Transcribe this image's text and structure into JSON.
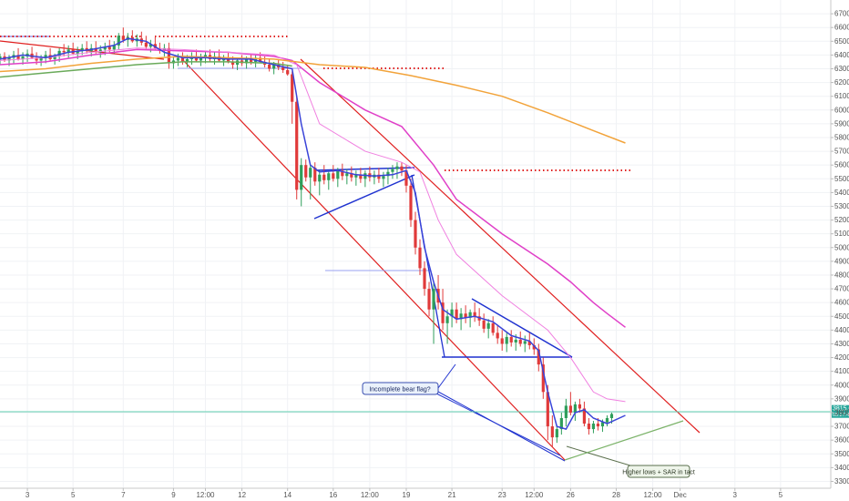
{
  "chart_data": {
    "type": "candlestick",
    "y_axis": {
      "position": "right",
      "ylim": [
        3250,
        6800
      ],
      "ticks": [
        3300,
        3400,
        3500,
        3600,
        3700,
        3800,
        3900,
        4000,
        4100,
        4200,
        4300,
        4400,
        4500,
        4600,
        4700,
        4800,
        4900,
        5000,
        5100,
        5200,
        5300,
        5400,
        5500,
        5600,
        5700,
        5800,
        5900,
        6000,
        6100,
        6200,
        6300,
        6400,
        6500,
        6600,
        6700
      ],
      "tick_labels": [
        "3300.0",
        "3400.0",
        "3500.0",
        "3600.0",
        "3700.0",
        "3800.0",
        "3900.0",
        "4000.0",
        "4100.0",
        "4200.0",
        "4300.0",
        "4400.0",
        "4500.0",
        "4600.0",
        "4700.0",
        "4800.0",
        "4900.0",
        "5000.0",
        "5100.0",
        "5200.0",
        "5300.0",
        "5400.0",
        "5500.0",
        "5600.0",
        "5700.0",
        "5800.0",
        "5900.0",
        "6000.0",
        "6100.0",
        "6200.0",
        "6300.0",
        "6400.0",
        "6500.0",
        "6600.0",
        "6700.0"
      ]
    },
    "x_axis": {
      "xlim": [
        0,
        182
      ],
      "ticks": [
        {
          "i": 6,
          "label": "3"
        },
        {
          "i": 16,
          "label": "5"
        },
        {
          "i": 27,
          "label": "7"
        },
        {
          "i": 38,
          "label": "9"
        },
        {
          "i": 45,
          "label": "12:00"
        },
        {
          "i": 53,
          "label": "12"
        },
        {
          "i": 63,
          "label": "14"
        },
        {
          "i": 73,
          "label": "16"
        },
        {
          "i": 81,
          "label": "12:00"
        },
        {
          "i": 89,
          "label": "19"
        },
        {
          "i": 99,
          "label": "21"
        },
        {
          "i": 110,
          "label": "23"
        },
        {
          "i": 117,
          "label": "12:00"
        },
        {
          "i": 125,
          "label": "26"
        },
        {
          "i": 135,
          "label": "28"
        },
        {
          "i": 143,
          "label": "12:00"
        },
        {
          "i": 149,
          "label": "Dec"
        },
        {
          "i": 161,
          "label": "3"
        },
        {
          "i": 171,
          "label": "5"
        }
      ]
    },
    "candles": [
      [
        6370,
        6410,
        6330,
        6390
      ],
      [
        6390,
        6420,
        6350,
        6360
      ],
      [
        6360,
        6400,
        6320,
        6380
      ],
      [
        6380,
        6430,
        6340,
        6400
      ],
      [
        6400,
        6450,
        6360,
        6370
      ],
      [
        6370,
        6420,
        6330,
        6390
      ],
      [
        6390,
        6440,
        6350,
        6410
      ],
      [
        6410,
        6460,
        6370,
        6380
      ],
      [
        6380,
        6420,
        6330,
        6360
      ],
      [
        6360,
        6400,
        6320,
        6380
      ],
      [
        6380,
        6430,
        6340,
        6400
      ],
      [
        6400,
        6450,
        6360,
        6370
      ],
      [
        6370,
        6410,
        6330,
        6390
      ],
      [
        6390,
        6450,
        6350,
        6430
      ],
      [
        6430,
        6480,
        6390,
        6420
      ],
      [
        6420,
        6470,
        6380,
        6440
      ],
      [
        6440,
        6490,
        6400,
        6410
      ],
      [
        6410,
        6460,
        6370,
        6430
      ],
      [
        6430,
        6480,
        6400,
        6450
      ],
      [
        6450,
        6500,
        6410,
        6430
      ],
      [
        6430,
        6480,
        6390,
        6450
      ],
      [
        6450,
        6500,
        6410,
        6420
      ],
      [
        6420,
        6470,
        6380,
        6440
      ],
      [
        6440,
        6490,
        6400,
        6460
      ],
      [
        6460,
        6510,
        6420,
        6440
      ],
      [
        6440,
        6500,
        6410,
        6470
      ],
      [
        6470,
        6560,
        6440,
        6540
      ],
      [
        6540,
        6600,
        6490,
        6510
      ],
      [
        6510,
        6560,
        6460,
        6530
      ],
      [
        6530,
        6580,
        6490,
        6500
      ],
      [
        6500,
        6550,
        6460,
        6520
      ],
      [
        6520,
        6570,
        6470,
        6490
      ],
      [
        6490,
        6540,
        6440,
        6460
      ],
      [
        6460,
        6510,
        6420,
        6480
      ],
      [
        6480,
        6530,
        6440,
        6450
      ],
      [
        6450,
        6490,
        6410,
        6430
      ],
      [
        6430,
        6480,
        6390,
        6450
      ],
      [
        6450,
        6490,
        6300,
        6340
      ],
      [
        6340,
        6390,
        6300,
        6360
      ],
      [
        6360,
        6410,
        6320,
        6380
      ],
      [
        6380,
        6420,
        6330,
        6350
      ],
      [
        6350,
        6400,
        6310,
        6370
      ],
      [
        6370,
        6420,
        6330,
        6390
      ],
      [
        6390,
        6440,
        6350,
        6360
      ],
      [
        6360,
        6410,
        6320,
        6380
      ],
      [
        6380,
        6430,
        6340,
        6400
      ],
      [
        6400,
        6440,
        6350,
        6370
      ],
      [
        6370,
        6420,
        6330,
        6390
      ],
      [
        6390,
        6440,
        6350,
        6360
      ],
      [
        6360,
        6400,
        6320,
        6380
      ],
      [
        6380,
        6420,
        6340,
        6350
      ],
      [
        6350,
        6390,
        6300,
        6330
      ],
      [
        6330,
        6380,
        6290,
        6360
      ],
      [
        6360,
        6400,
        6320,
        6340
      ],
      [
        6340,
        6390,
        6300,
        6370
      ],
      [
        6370,
        6410,
        6330,
        6350
      ],
      [
        6350,
        6400,
        6310,
        6380
      ],
      [
        6380,
        6420,
        6340,
        6350
      ],
      [
        6350,
        6390,
        6310,
        6330
      ],
      [
        6330,
        6370,
        6280,
        6300
      ],
      [
        6300,
        6350,
        6260,
        6330
      ],
      [
        6330,
        6370,
        6290,
        6310
      ],
      [
        6310,
        6350,
        6270,
        6290
      ],
      [
        6290,
        6330,
        6250,
        6260
      ],
      [
        6260,
        6280,
        5900,
        6060
      ],
      [
        6060,
        6100,
        5350,
        5420
      ],
      [
        5420,
        5650,
        5300,
        5600
      ],
      [
        5600,
        5640,
        5480,
        5510
      ],
      [
        5510,
        5600,
        5350,
        5580
      ],
      [
        5580,
        5620,
        5450,
        5480
      ],
      [
        5480,
        5560,
        5380,
        5530
      ],
      [
        5530,
        5600,
        5460,
        5490
      ],
      [
        5490,
        5560,
        5420,
        5540
      ],
      [
        5540,
        5600,
        5480,
        5500
      ],
      [
        5500,
        5580,
        5440,
        5560
      ],
      [
        5560,
        5610,
        5490,
        5520
      ],
      [
        5520,
        5570,
        5460,
        5540
      ],
      [
        5540,
        5590,
        5480,
        5510
      ],
      [
        5510,
        5560,
        5450,
        5530
      ],
      [
        5530,
        5580,
        5470,
        5500
      ],
      [
        5500,
        5560,
        5440,
        5540
      ],
      [
        5540,
        5590,
        5480,
        5510
      ],
      [
        5510,
        5560,
        5460,
        5530
      ],
      [
        5530,
        5580,
        5470,
        5500
      ],
      [
        5500,
        5550,
        5440,
        5520
      ],
      [
        5520,
        5580,
        5460,
        5550
      ],
      [
        5550,
        5600,
        5500,
        5570
      ],
      [
        5570,
        5620,
        5500,
        5590
      ],
      [
        5590,
        5620,
        5520,
        5560
      ],
      [
        5560,
        5600,
        5400,
        5450
      ],
      [
        5450,
        5500,
        5150,
        5200
      ],
      [
        5200,
        5260,
        4950,
        5000
      ],
      [
        5000,
        5060,
        4800,
        4850
      ],
      [
        4850,
        4900,
        4650,
        4700
      ],
      [
        4700,
        4750,
        4500,
        4550
      ],
      [
        4550,
        4750,
        4300,
        4700
      ],
      [
        4700,
        4800,
        4550,
        4600
      ],
      [
        4600,
        4700,
        4400,
        4450
      ],
      [
        4450,
        4550,
        4300,
        4500
      ],
      [
        4500,
        4600,
        4420,
        4550
      ],
      [
        4550,
        4600,
        4450,
        4480
      ],
      [
        4480,
        4560,
        4400,
        4520
      ],
      [
        4520,
        4580,
        4450,
        4490
      ],
      [
        4490,
        4550,
        4420,
        4530
      ],
      [
        4530,
        4600,
        4460,
        4500
      ],
      [
        4500,
        4560,
        4430,
        4470
      ],
      [
        4470,
        4520,
        4380,
        4410
      ],
      [
        4410,
        4480,
        4340,
        4450
      ],
      [
        4450,
        4500,
        4360,
        4380
      ],
      [
        4380,
        4440,
        4300,
        4340
      ],
      [
        4340,
        4400,
        4250,
        4300
      ],
      [
        4300,
        4380,
        4240,
        4350
      ],
      [
        4350,
        4400,
        4280,
        4310
      ],
      [
        4310,
        4370,
        4250,
        4330
      ],
      [
        4330,
        4390,
        4280,
        4300
      ],
      [
        4300,
        4360,
        4240,
        4320
      ],
      [
        4320,
        4380,
        4260,
        4290
      ],
      [
        4290,
        4340,
        4220,
        4260
      ],
      [
        4260,
        4300,
        4100,
        4150
      ],
      [
        4150,
        4200,
        3900,
        3950
      ],
      [
        3950,
        4000,
        3600,
        3700
      ],
      [
        3700,
        3780,
        3550,
        3620
      ],
      [
        3620,
        3700,
        3580,
        3680
      ],
      [
        3680,
        3800,
        3640,
        3760
      ],
      [
        3760,
        3900,
        3700,
        3850
      ],
      [
        3850,
        3950,
        3780,
        3800
      ],
      [
        3800,
        3880,
        3740,
        3860
      ],
      [
        3860,
        3900,
        3800,
        3830
      ],
      [
        3830,
        3880,
        3700,
        3720
      ],
      [
        3720,
        3760,
        3640,
        3680
      ],
      [
        3680,
        3740,
        3650,
        3720
      ],
      [
        3720,
        3760,
        3670,
        3700
      ],
      [
        3700,
        3750,
        3660,
        3730
      ],
      [
        3730,
        3780,
        3700,
        3760
      ],
      [
        3760,
        3800,
        3720,
        3790
      ]
    ],
    "series": [
      {
        "points": [
          [
            0,
            6330
          ],
          [
            10,
            6350
          ],
          [
            20,
            6400
          ],
          [
            30,
            6440
          ],
          [
            40,
            6430
          ],
          [
            50,
            6420
          ],
          [
            60,
            6390
          ],
          [
            64,
            6360
          ],
          [
            70,
            6200
          ],
          [
            80,
            6000
          ],
          [
            88,
            5880
          ],
          [
            95,
            5600
          ],
          [
            100,
            5350
          ],
          [
            110,
            5100
          ],
          [
            120,
            4880
          ],
          [
            125,
            4750
          ],
          [
            130,
            4600
          ],
          [
            133,
            4520
          ],
          [
            137,
            4420
          ]
        ],
        "color": "#e040c8",
        "width": 1.5
      },
      {
        "points": [
          [
            0,
            6360
          ],
          [
            10,
            6380
          ],
          [
            20,
            6420
          ],
          [
            30,
            6450
          ],
          [
            40,
            6440
          ],
          [
            50,
            6420
          ],
          [
            60,
            6400
          ],
          [
            65,
            6330
          ],
          [
            70,
            5900
          ],
          [
            80,
            5700
          ],
          [
            88,
            5620
          ],
          [
            92,
            5550
          ],
          [
            96,
            5200
          ],
          [
            100,
            4950
          ],
          [
            110,
            4650
          ],
          [
            120,
            4400
          ],
          [
            125,
            4200
          ],
          [
            130,
            3950
          ],
          [
            133,
            3900
          ],
          [
            137,
            3880
          ]
        ],
        "color": "#f080e0",
        "width": 1
      },
      {
        "points": [
          [
            0,
            6280
          ],
          [
            10,
            6300
          ],
          [
            20,
            6340
          ],
          [
            30,
            6370
          ],
          [
            40,
            6390
          ],
          [
            50,
            6380
          ],
          [
            60,
            6370
          ],
          [
            70,
            6330
          ],
          [
            80,
            6310
          ],
          [
            90,
            6250
          ],
          [
            100,
            6180
          ],
          [
            110,
            6100
          ],
          [
            120,
            5980
          ],
          [
            130,
            5850
          ],
          [
            137,
            5760
          ]
        ],
        "color": "#f2a33a",
        "width": 1.5
      },
      {
        "points": [
          [
            0,
            6240
          ],
          [
            10,
            6270
          ],
          [
            20,
            6300
          ],
          [
            30,
            6330
          ],
          [
            40,
            6350
          ],
          [
            50,
            6350
          ],
          [
            60,
            6340
          ],
          [
            64,
            6320
          ]
        ],
        "color": "#6aaa5a",
        "width": 1.5
      },
      {
        "points": [
          [
            0,
            6370
          ],
          [
            5,
            6400
          ],
          [
            10,
            6380
          ],
          [
            15,
            6420
          ],
          [
            20,
            6440
          ],
          [
            25,
            6470
          ],
          [
            28,
            6520
          ],
          [
            32,
            6500
          ],
          [
            36,
            6420
          ],
          [
            40,
            6380
          ],
          [
            45,
            6380
          ],
          [
            50,
            6370
          ],
          [
            55,
            6370
          ],
          [
            60,
            6330
          ],
          [
            64,
            6300
          ],
          [
            66,
            5900
          ],
          [
            68,
            5600
          ],
          [
            70,
            5550
          ],
          [
            74,
            5560
          ],
          [
            78,
            5530
          ],
          [
            82,
            5520
          ],
          [
            86,
            5530
          ],
          [
            89,
            5560
          ],
          [
            91,
            5400
          ],
          [
            93,
            5000
          ],
          [
            95,
            4750
          ],
          [
            97,
            4550
          ],
          [
            100,
            4480
          ],
          [
            104,
            4500
          ],
          [
            108,
            4460
          ],
          [
            112,
            4360
          ],
          [
            116,
            4320
          ],
          [
            118,
            4250
          ],
          [
            120,
            3950
          ],
          [
            122,
            3700
          ],
          [
            124,
            3680
          ],
          [
            126,
            3800
          ],
          [
            128,
            3820
          ],
          [
            130,
            3760
          ],
          [
            133,
            3720
          ],
          [
            137,
            3780
          ]
        ],
        "color": "#3a44d8",
        "width": 1.5
      }
    ],
    "annotations": [
      {
        "text": "Incomplete bear flag?"
      },
      {
        "text": "Higher lows + SAR in tact"
      }
    ],
    "current_price": {
      "value": 3815.0,
      "label": "3815.0",
      "sublabel": "05:27:41"
    }
  }
}
